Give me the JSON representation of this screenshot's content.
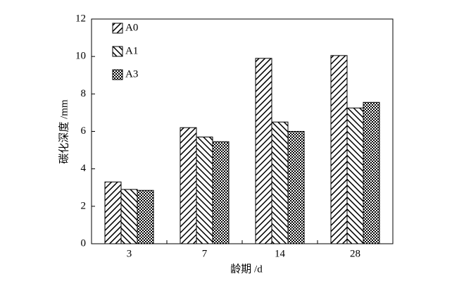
{
  "chart_data": {
    "type": "bar",
    "x_label": "龄期 /d",
    "y_label": "碳化深度 /mm",
    "categories": [
      "3",
      "7",
      "14",
      "28"
    ],
    "series": [
      {
        "name": "A0",
        "color": "#000000",
        "pattern": "diagonal-right",
        "values": [
          3.3,
          6.2,
          9.9,
          10.05
        ]
      },
      {
        "name": "A1",
        "color": "#000000",
        "pattern": "diagonal-left",
        "values": [
          2.9,
          5.7,
          6.5,
          7.25
        ]
      },
      {
        "name": "A3",
        "color": "#000000",
        "pattern": "checker",
        "values": [
          2.85,
          5.45,
          6.0,
          7.55
        ]
      }
    ],
    "ylim": [
      0,
      12
    ],
    "yticks": [
      0,
      2,
      4,
      6,
      8,
      10,
      12
    ],
    "grid": false,
    "legend": "upper-left"
  }
}
